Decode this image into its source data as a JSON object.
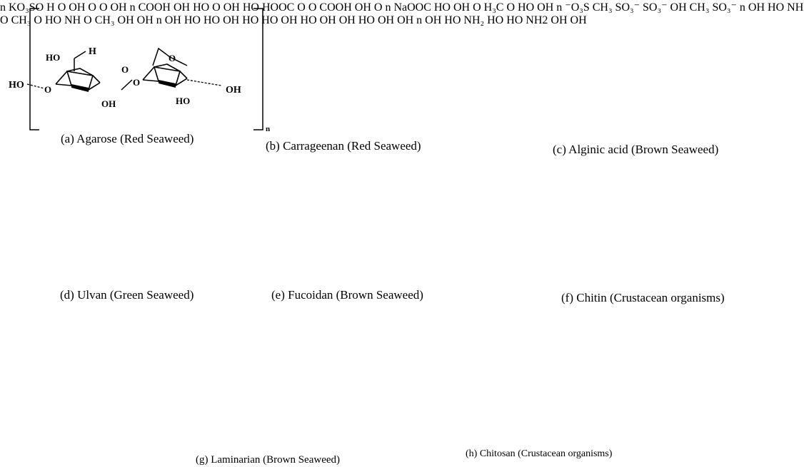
{
  "captions": {
    "a": "(a) Agarose (Red Seaweed)",
    "b": "(b) Carrageenan (Red Seaweed)",
    "c": "(c) Alginic acid (Brown Seaweed)",
    "d": "(d) Ulvan (Green Seaweed)",
    "e": "(e) Fucoidan (Brown Seaweed)",
    "f": "(f) Chitin (Crustacean organisms)",
    "g": "(g) Laminarian (Brown Seaweed)",
    "h": "(h) Chitosan (Crustacean organisms)"
  },
  "repeat_unit": "n",
  "groups": {
    "a": [
      "HO",
      "O",
      "H",
      "HO",
      "O",
      "OH",
      "O",
      "O",
      "HO",
      "OH"
    ],
    "b": [
      "KO₃SO",
      "O",
      "H",
      "O",
      "OH",
      "O",
      "OH"
    ],
    "c": [
      "COOH",
      "OH",
      "O",
      "HO",
      "OH",
      "COOH",
      "O",
      "HO",
      "HOOC",
      "OH"
    ],
    "d": [
      "NaOOC",
      "HO",
      "OH",
      "H₃C",
      "O",
      "HO",
      "OH"
    ],
    "e": [
      "⁻O₃S",
      "CH₃",
      "SO₃⁻",
      "OH",
      "CH₃",
      "SO₃⁻"
    ],
    "f": [
      "OH",
      "CH₃",
      "O",
      "NH",
      "HO",
      "HO",
      "NH",
      "O",
      "CH₃",
      "OH",
      "OH"
    ],
    "g": [
      "OH",
      "HO",
      "HO",
      "OH",
      "HO",
      "OH",
      "HO",
      "OH",
      "OH",
      "OH",
      "OH"
    ],
    "h": [
      "OH",
      "NH2",
      "HO",
      "NH₂",
      "HO",
      "OH",
      "OH"
    ]
  }
}
